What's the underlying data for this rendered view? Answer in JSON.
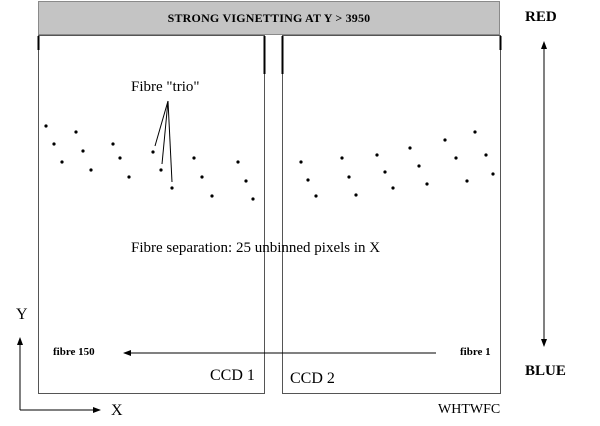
{
  "banner": "STRONG VIGNETTING AT Y > 3950",
  "labels": {
    "red": "RED",
    "blue": "BLUE",
    "trio": "Fibre \"trio\"",
    "separation": "Fibre separation: 25 unbinned pixels in X",
    "fibre_150": "fibre 150",
    "fibre_1": "fibre 1",
    "ccd1": "CCD 1",
    "ccd2": "CCD 2",
    "axis_y": "Y",
    "axis_x": "X",
    "credit": "WHTWFC"
  },
  "colors": {
    "banner_fill": "#c4c4c4",
    "line": "#000000",
    "frame": "#555555"
  }
}
